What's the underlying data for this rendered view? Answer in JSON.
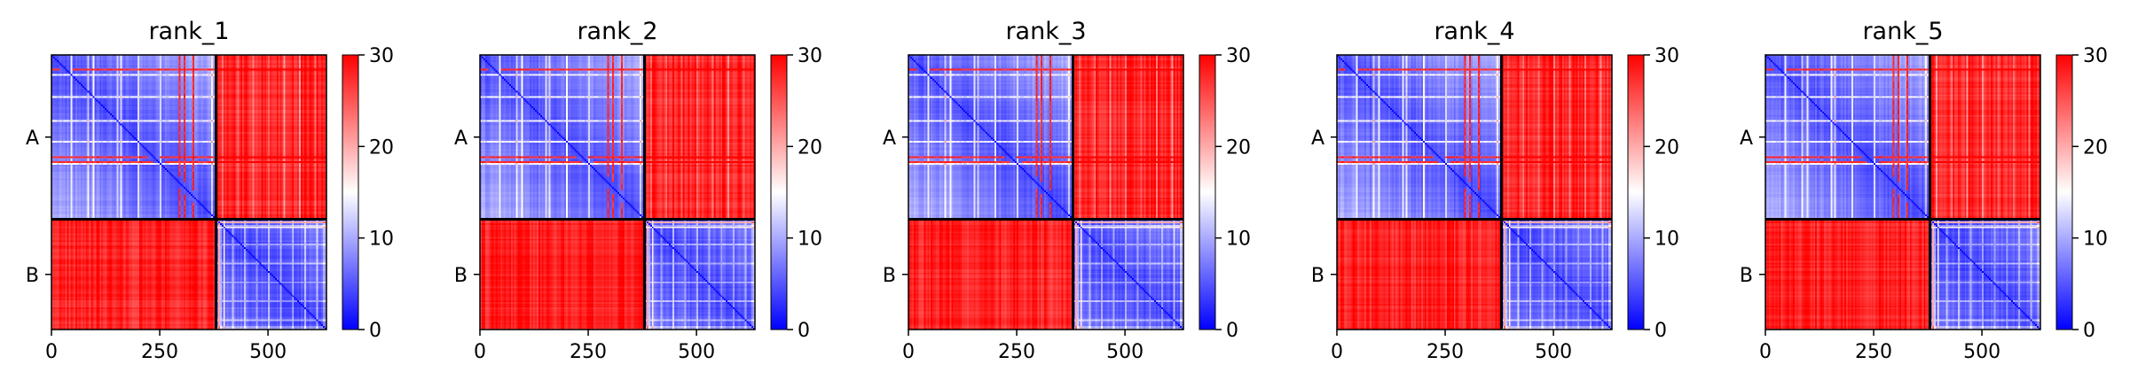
{
  "colorbar": {
    "ticks": [
      0,
      10,
      20,
      30
    ],
    "min": 0,
    "max": 30,
    "colormap": "bwr",
    "low_color": "#0000ff",
    "mid_color": "#ffffff",
    "high_color": "#ff0000"
  },
  "chart_data": [
    {
      "type": "heatmap",
      "title": "rank_1",
      "chains": [
        {
          "label": "A",
          "start": 0,
          "end": 380
        },
        {
          "label": "B",
          "start": 380,
          "end": 635
        }
      ],
      "xticks": [
        0,
        250,
        500
      ],
      "xlim": [
        0,
        635
      ],
      "value_range": [
        0,
        30
      ],
      "colorbar_ticks": [
        0,
        10,
        20,
        30
      ]
    },
    {
      "type": "heatmap",
      "title": "rank_2",
      "chains": [
        {
          "label": "A",
          "start": 0,
          "end": 380
        },
        {
          "label": "B",
          "start": 380,
          "end": 635
        }
      ],
      "xticks": [
        0,
        250,
        500
      ],
      "xlim": [
        0,
        635
      ],
      "value_range": [
        0,
        30
      ],
      "colorbar_ticks": [
        0,
        10,
        20,
        30
      ]
    },
    {
      "type": "heatmap",
      "title": "rank_3",
      "chains": [
        {
          "label": "A",
          "start": 0,
          "end": 380
        },
        {
          "label": "B",
          "start": 380,
          "end": 635
        }
      ],
      "xticks": [
        0,
        250,
        500
      ],
      "xlim": [
        0,
        635
      ],
      "value_range": [
        0,
        30
      ],
      "colorbar_ticks": [
        0,
        10,
        20,
        30
      ]
    },
    {
      "type": "heatmap",
      "title": "rank_4",
      "chains": [
        {
          "label": "A",
          "start": 0,
          "end": 380
        },
        {
          "label": "B",
          "start": 380,
          "end": 635
        }
      ],
      "xticks": [
        0,
        250,
        500
      ],
      "xlim": [
        0,
        635
      ],
      "value_range": [
        0,
        30
      ],
      "colorbar_ticks": [
        0,
        10,
        20,
        30
      ]
    },
    {
      "type": "heatmap",
      "title": "rank_5",
      "chains": [
        {
          "label": "A",
          "start": 0,
          "end": 380
        },
        {
          "label": "B",
          "start": 380,
          "end": 635
        }
      ],
      "xticks": [
        0,
        250,
        500
      ],
      "xlim": [
        0,
        635
      ],
      "value_range": [
        0,
        30
      ],
      "colorbar_ticks": [
        0,
        10,
        20,
        30
      ]
    }
  ]
}
